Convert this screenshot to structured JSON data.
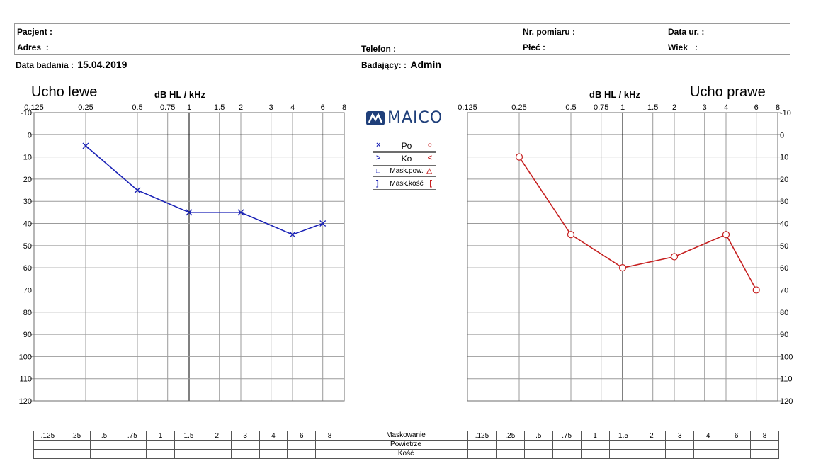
{
  "header": {
    "patient_label": "Pacjent",
    "address_label": "Adres",
    "phone_label": "Telefon",
    "measurement_no_label": "Nr. pomiaru",
    "sex_label": "Płeć",
    "birthdate_label": "Data ur.",
    "age_label": "Wiek",
    "exam_date_label": "Data badania",
    "exam_date": "15.04.2019",
    "examiner_label": "Badający:",
    "examiner": "Admin",
    "colon": ":"
  },
  "brand": "MAICO",
  "legend": [
    {
      "left_symbol": "×",
      "label": "Po",
      "right_symbol": "○"
    },
    {
      "left_symbol": ">",
      "label": "Ko",
      "right_symbol": "<"
    },
    {
      "left_symbol": "□",
      "label": "Mask.pow.",
      "right_symbol": "△"
    },
    {
      "left_symbol": "]",
      "label": "Mask.kość",
      "right_symbol": "["
    }
  ],
  "colors": {
    "left": "#1a22b6",
    "right": "#c62020",
    "grid": "#9b9b9b"
  },
  "bottom_table": {
    "freqs": [
      ".125",
      ".25",
      ".5",
      ".75",
      "1",
      "1.5",
      "2",
      "3",
      "4",
      "6",
      "8"
    ],
    "rows": [
      "Maskowanie",
      "Powietrze",
      "Kość"
    ]
  },
  "chart_data": [
    {
      "type": "line",
      "title": "Ucho lewe",
      "xlabel": "dB HL / kHz",
      "x_tick_labels": [
        "0.125",
        "0.25",
        "0.5",
        "0.75",
        "1",
        "1.5",
        "2",
        "3",
        "4",
        "6",
        "8"
      ],
      "y_ticks": [
        "-10",
        "0",
        "10",
        "20",
        "30",
        "40",
        "50",
        "60",
        "70",
        "80",
        "90",
        "100",
        "110",
        "120"
      ],
      "ylim": [
        -10,
        120
      ],
      "y_axis_side": "left",
      "marker": "x",
      "series": [
        {
          "name": "Po",
          "x": [
            0.25,
            0.5,
            1,
            2,
            4,
            6
          ],
          "values": [
            5,
            25,
            35,
            35,
            45,
            40
          ]
        }
      ]
    },
    {
      "type": "line",
      "title": "Ucho prawe",
      "xlabel": "dB HL / kHz",
      "x_tick_labels": [
        "0.125",
        "0.25",
        "0.5",
        "0.75",
        "1",
        "1.5",
        "2",
        "3",
        "4",
        "6",
        "8"
      ],
      "y_ticks": [
        "-10",
        "0",
        "10",
        "20",
        "30",
        "40",
        "50",
        "60",
        "70",
        "80",
        "90",
        "100",
        "110",
        "120"
      ],
      "ylim": [
        -10,
        120
      ],
      "y_axis_side": "right",
      "marker": "o",
      "series": [
        {
          "name": "Po",
          "x": [
            0.25,
            0.5,
            1,
            2,
            4,
            6
          ],
          "values": [
            10,
            45,
            60,
            55,
            45,
            70
          ]
        }
      ]
    }
  ]
}
